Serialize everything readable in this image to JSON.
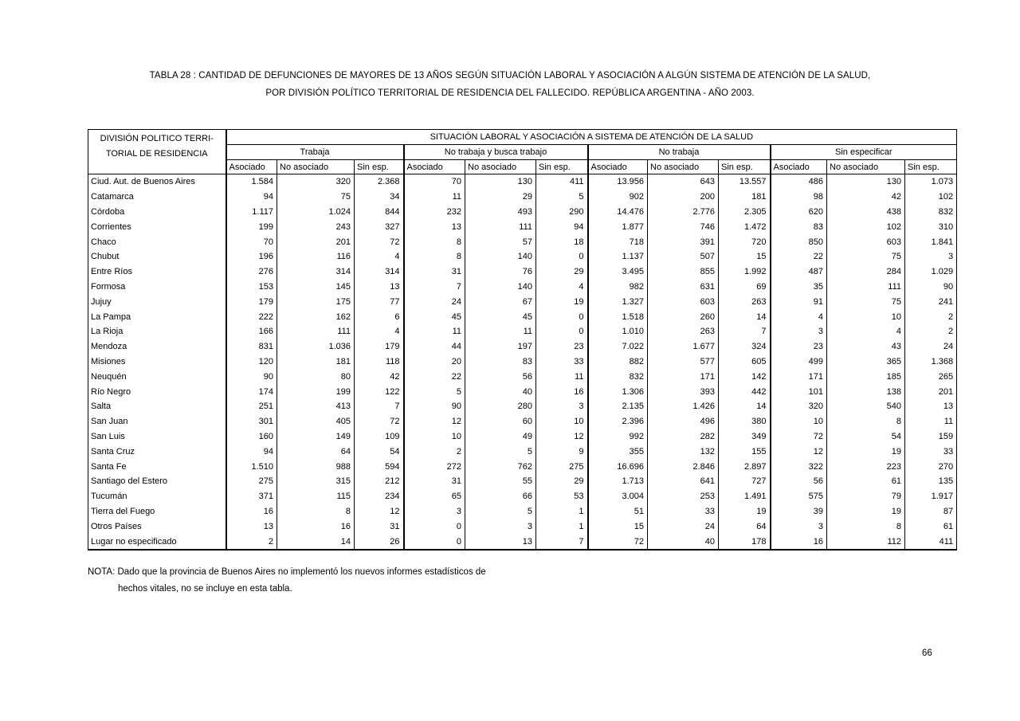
{
  "page": {
    "title_line1": "TABLA 28 : CANTIDAD DE DEFUNCIONES DE MAYORES DE 13 AÑOS SEGÚN SITUACIÓN LABORAL Y ASOCIACIÓN A ALGÚN SISTEMA DE ATENCIÓN DE LA SALUD,",
    "title_line2": "POR DIVISIÓN POLÍTICO TERRITORIAL DE RESIDENCIA DEL FALLECIDO. REPÚBLICA ARGENTINA - AÑO 2003.",
    "note_label": "NOTA:",
    "note_line1": "Dado que la provincia de Buenos Aires no implementó los nuevos informes estadísticos de",
    "note_line2": "hechos vitales, no se incluye en esta tabla.",
    "page_number": "66"
  },
  "table": {
    "row_header_line1": "DIVISIÓN POLITICO TERRI-",
    "row_header_line2": "TORIAL DE RESIDENCIA",
    "span_header": "SITUACIÓN LABORAL Y ASOCIACIÓN A SISTEMA DE ATENCIÓN DE LA SALUD",
    "groups": [
      "Trabaja",
      "No trabaja y busca trabajo",
      "No trabaja",
      "Sin especificar"
    ],
    "subcolumns": [
      "Asociado",
      "No asociado",
      "Sin esp."
    ],
    "rows": [
      {
        "name": "Ciud. Aut. de  Buenos Aires",
        "values": [
          "1.584",
          "320",
          "2.368",
          "70",
          "130",
          "411",
          "13.956",
          "643",
          "13.557",
          "486",
          "130",
          "1.073"
        ]
      },
      {
        "name": "Catamarca",
        "values": [
          "94",
          "75",
          "34",
          "11",
          "29",
          "5",
          "902",
          "200",
          "181",
          "98",
          "42",
          "102"
        ]
      },
      {
        "name": "Córdoba",
        "values": [
          "1.117",
          "1.024",
          "844",
          "232",
          "493",
          "290",
          "14.476",
          "2.776",
          "2.305",
          "620",
          "438",
          "832"
        ]
      },
      {
        "name": "Corrientes",
        "values": [
          "199",
          "243",
          "327",
          "13",
          "111",
          "94",
          "1.877",
          "746",
          "1.472",
          "83",
          "102",
          "310"
        ]
      },
      {
        "name": "Chaco",
        "values": [
          "70",
          "201",
          "72",
          "8",
          "57",
          "18",
          "718",
          "391",
          "720",
          "850",
          "603",
          "1.841"
        ]
      },
      {
        "name": "Chubut",
        "values": [
          "196",
          "116",
          "4",
          "8",
          "140",
          "0",
          "1.137",
          "507",
          "15",
          "22",
          "75",
          "3"
        ]
      },
      {
        "name": "Entre Ríos",
        "values": [
          "276",
          "314",
          "314",
          "31",
          "76",
          "29",
          "3.495",
          "855",
          "1.992",
          "487",
          "284",
          "1.029"
        ]
      },
      {
        "name": "Formosa",
        "values": [
          "153",
          "145",
          "13",
          "7",
          "140",
          "4",
          "982",
          "631",
          "69",
          "35",
          "111",
          "90"
        ]
      },
      {
        "name": "Jujuy",
        "values": [
          "179",
          "175",
          "77",
          "24",
          "67",
          "19",
          "1.327",
          "603",
          "263",
          "91",
          "75",
          "241"
        ]
      },
      {
        "name": "La Pampa",
        "values": [
          "222",
          "162",
          "6",
          "45",
          "45",
          "0",
          "1.518",
          "260",
          "14",
          "4",
          "10",
          "2"
        ]
      },
      {
        "name": "La Rioja",
        "values": [
          "166",
          "111",
          "4",
          "11",
          "11",
          "0",
          "1.010",
          "263",
          "7",
          "3",
          "4",
          "2"
        ]
      },
      {
        "name": "Mendoza",
        "values": [
          "831",
          "1.036",
          "179",
          "44",
          "197",
          "23",
          "7.022",
          "1.677",
          "324",
          "23",
          "43",
          "24"
        ]
      },
      {
        "name": "Misiones",
        "values": [
          "120",
          "181",
          "118",
          "20",
          "83",
          "33",
          "882",
          "577",
          "605",
          "499",
          "365",
          "1.368"
        ]
      },
      {
        "name": "Neuquén",
        "values": [
          "90",
          "80",
          "42",
          "22",
          "56",
          "11",
          "832",
          "171",
          "142",
          "171",
          "185",
          "265"
        ]
      },
      {
        "name": "Río Negro",
        "values": [
          "174",
          "199",
          "122",
          "5",
          "40",
          "16",
          "1.306",
          "393",
          "442",
          "101",
          "138",
          "201"
        ]
      },
      {
        "name": "Salta",
        "values": [
          "251",
          "413",
          "7",
          "90",
          "280",
          "3",
          "2.135",
          "1.426",
          "14",
          "320",
          "540",
          "13"
        ]
      },
      {
        "name": "San Juan",
        "values": [
          "301",
          "405",
          "72",
          "12",
          "60",
          "10",
          "2.396",
          "496",
          "380",
          "10",
          "8",
          "11"
        ]
      },
      {
        "name": "San Luis",
        "values": [
          "160",
          "149",
          "109",
          "10",
          "49",
          "12",
          "992",
          "282",
          "349",
          "72",
          "54",
          "159"
        ]
      },
      {
        "name": "Santa Cruz",
        "values": [
          "94",
          "64",
          "54",
          "2",
          "5",
          "9",
          "355",
          "132",
          "155",
          "12",
          "19",
          "33"
        ]
      },
      {
        "name": "Santa Fe",
        "values": [
          "1.510",
          "988",
          "594",
          "272",
          "762",
          "275",
          "16.696",
          "2.846",
          "2.897",
          "322",
          "223",
          "270"
        ]
      },
      {
        "name": "Santiago del Estero",
        "values": [
          "275",
          "315",
          "212",
          "31",
          "55",
          "29",
          "1.713",
          "641",
          "727",
          "56",
          "61",
          "135"
        ]
      },
      {
        "name": "Tucumán",
        "values": [
          "371",
          "115",
          "234",
          "65",
          "66",
          "53",
          "3.004",
          "253",
          "1.491",
          "575",
          "79",
          "1.917"
        ]
      },
      {
        "name": "Tierra del Fuego",
        "values": [
          "16",
          "8",
          "12",
          "3",
          "5",
          "1",
          "51",
          "33",
          "19",
          "39",
          "19",
          "87"
        ]
      },
      {
        "name": "Otros Países",
        "values": [
          "13",
          "16",
          "31",
          "0",
          "3",
          "1",
          "15",
          "24",
          "64",
          "3",
          "8",
          "61"
        ]
      },
      {
        "name": "Lugar no especificado",
        "values": [
          "2",
          "14",
          "26",
          "0",
          "13",
          "7",
          "72",
          "40",
          "178",
          "16",
          "112",
          "411"
        ]
      }
    ]
  }
}
